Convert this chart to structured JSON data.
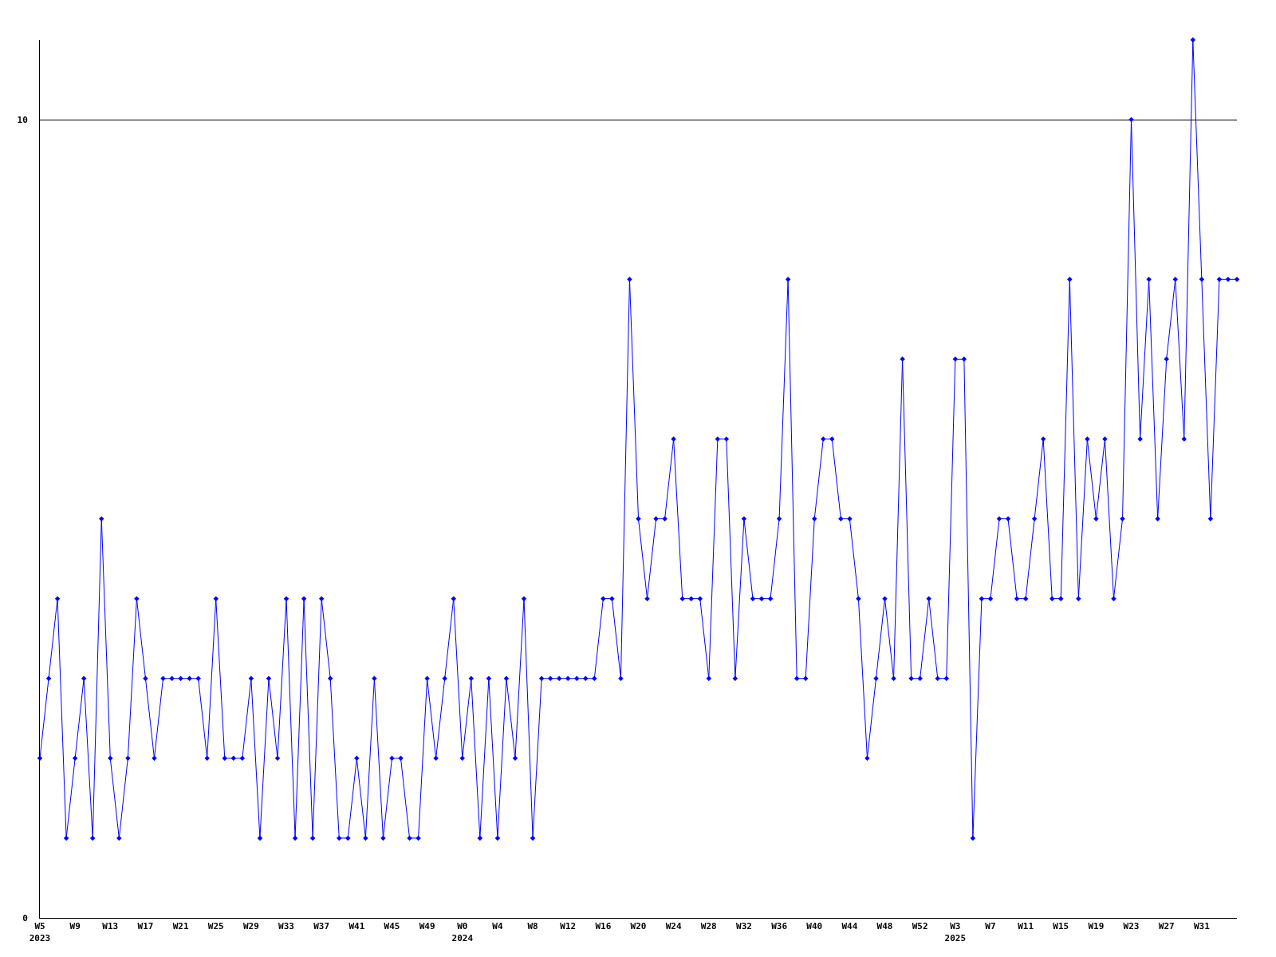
{
  "chart_data": {
    "type": "line",
    "categories": [
      "W5\n2023",
      null,
      null,
      null,
      "W9",
      null,
      null,
      null,
      "W13",
      null,
      null,
      null,
      "W17",
      null,
      null,
      null,
      "W21",
      null,
      null,
      null,
      "W25",
      null,
      null,
      null,
      "W29",
      null,
      null,
      null,
      "W33",
      null,
      null,
      null,
      "W37",
      null,
      null,
      null,
      "W41",
      null,
      null,
      null,
      "W45",
      null,
      null,
      null,
      "W49",
      null,
      null,
      null,
      "W0\n2024",
      null,
      null,
      null,
      "W4",
      null,
      null,
      null,
      "W8",
      null,
      null,
      null,
      "W12",
      null,
      null,
      null,
      "W16",
      null,
      null,
      null,
      "W20",
      null,
      null,
      null,
      "W24",
      null,
      null,
      null,
      "W28",
      null,
      null,
      null,
      "W32",
      null,
      null,
      null,
      "W36",
      null,
      null,
      null,
      "W40",
      null,
      null,
      null,
      "W44",
      null,
      null,
      null,
      "W48",
      null,
      null,
      null,
      "W52",
      null,
      null,
      null,
      "W3\n2025",
      null,
      null,
      null,
      "W7",
      null,
      null,
      null,
      "W11",
      null,
      null,
      null,
      "W15",
      null,
      null,
      null,
      "W19",
      null,
      null,
      null,
      "W23",
      null,
      null,
      null,
      "W27",
      null,
      null,
      null,
      "W31",
      null,
      null,
      null,
      null
    ],
    "series": [
      {
        "color": "#0000ff",
        "values": [
          2,
          3,
          4,
          1,
          2,
          3,
          1,
          5,
          2,
          1,
          2,
          4,
          3,
          2,
          3,
          3,
          3,
          3,
          3,
          2,
          4,
          2,
          2,
          2,
          3,
          1,
          3,
          2,
          4,
          1,
          4,
          1,
          4,
          3,
          1,
          1,
          2,
          1,
          3,
          1,
          2,
          2,
          1,
          1,
          3,
          2,
          3,
          4,
          2,
          3,
          1,
          3,
          1,
          3,
          2,
          4,
          1,
          3,
          3,
          3,
          3,
          3,
          3,
          3,
          4,
          4,
          3,
          8,
          5,
          4,
          5,
          5,
          6,
          4,
          4,
          4,
          3,
          6,
          6,
          3,
          5,
          4,
          4,
          4,
          5,
          8,
          3,
          3,
          5,
          6,
          6,
          5,
          5,
          4,
          2,
          3,
          4,
          3,
          7,
          3,
          3,
          4,
          3,
          3,
          7,
          7,
          1,
          4,
          4,
          5,
          5,
          4,
          4,
          5,
          6,
          4,
          4,
          8,
          4,
          6,
          5,
          6,
          4,
          5,
          10,
          6,
          8,
          5,
          7,
          8,
          6,
          11,
          8,
          5,
          8,
          8,
          8
        ]
      }
    ],
    "ylim": [
      0,
      11
    ],
    "yticks": [
      0,
      10
    ],
    "grid": "y",
    "marker": "diamond",
    "line_style": "solid"
  }
}
